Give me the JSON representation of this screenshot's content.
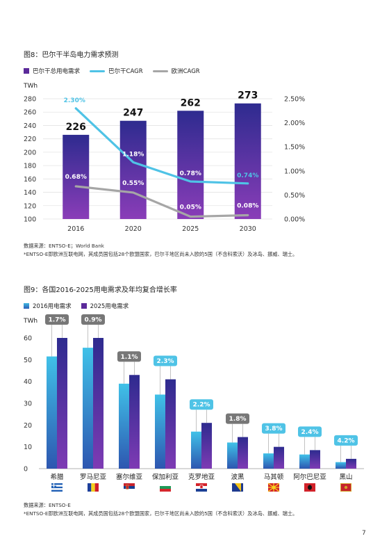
{
  "page_number": "7",
  "chart_data": [
    {
      "type": "bar",
      "title": "图8：巴尔干半岛电力需求预测",
      "ylabel": "TWh",
      "ylim": [
        100,
        280
      ],
      "yticks": [
        "100",
        "120",
        "140",
        "160",
        "180",
        "200",
        "220",
        "240",
        "260",
        "280"
      ],
      "y2ticks": [
        "0.00%",
        "0.50%",
        "1.00%",
        "1.50%",
        "2.00%",
        "2.50%"
      ],
      "y2lim": [
        0,
        2.5
      ],
      "categories": [
        "2016",
        "2020",
        "2025",
        "2030"
      ],
      "series": [
        {
          "name": "巴尔干总用电需求",
          "type": "bar",
          "values": [
            226,
            247,
            262,
            273
          ],
          "labels": [
            "226",
            "247",
            "262",
            "273"
          ],
          "color": "#5b2a9a"
        },
        {
          "name": "巴尔干CAGR",
          "type": "line",
          "axis": "right",
          "values": [
            2.3,
            1.18,
            0.78,
            0.74
          ],
          "labels": [
            "2.30%",
            "1.18%",
            "0.78%",
            "0.74%"
          ],
          "color": "#4fc3e6"
        },
        {
          "name": "欧洲CAGR",
          "type": "line",
          "axis": "right",
          "values": [
            0.68,
            0.55,
            0.05,
            0.08
          ],
          "labels": [
            "0.68%",
            "0.55%",
            "0.05%",
            "0.08%"
          ],
          "color": "#a6a6a6"
        }
      ],
      "legend_position": "top-left",
      "grid": true,
      "source": "数据来源：ENTSO-E；World Bank",
      "note": "*ENTSO-E即欧洲互联电网，其成员国包括28个欧盟国家，巴尔干地区尚未入欧的5国（不含科索沃）及冰岛、挪威、瑞士。"
    },
    {
      "type": "bar",
      "title": "图9：各国2016-2025用电需求及年均复合增长率",
      "ylabel": "TWh",
      "ylim": [
        0,
        60
      ],
      "yticks": [
        "0",
        "10",
        "20",
        "30",
        "40",
        "50",
        "60"
      ],
      "categories": [
        "希腊",
        "罗马尼亚",
        "塞尔维亚",
        "保加利亚",
        "克罗地亚",
        "波黑",
        "马其顿",
        "阿尔巴尼亚",
        "黑山"
      ],
      "series": [
        {
          "name": "2016用电需求",
          "values": [
            51.5,
            55.5,
            39,
            34,
            17,
            12,
            7,
            6.5,
            3
          ],
          "color": "#3fb6df"
        },
        {
          "name": "2025用电需求",
          "values": [
            60,
            60,
            43,
            41,
            21,
            14.5,
            10,
            8.5,
            4.5
          ],
          "color": "#5b2a9a"
        }
      ],
      "cagr_labels": [
        "1.7%",
        "0.9%",
        "1.1%",
        "2.3%",
        "2.2%",
        "1.8%",
        "3.8%",
        "2.4%",
        "4.2%"
      ],
      "cagr_colors": [
        "#777777",
        "#777777",
        "#777777",
        "#4fc3e6",
        "#4fc3e6",
        "#777777",
        "#4fc3e6",
        "#4fc3e6",
        "#4fc3e6"
      ],
      "flags": [
        "greece-flag",
        "romania-flag",
        "serbia-flag",
        "bulgaria-flag",
        "croatia-flag",
        "bosnia-flag",
        "macedonia-flag",
        "albania-flag",
        "montenegro-flag"
      ],
      "legend_position": "top-left",
      "grid": false,
      "source": "数据来源：ENTSO-E",
      "note": "*ENTSO-E即欧洲互联电网，其成员国包括28个欧盟国家，巴尔干地区尚未入欧的5国（不含科索沃）及冰岛、挪威、瑞士。"
    }
  ]
}
